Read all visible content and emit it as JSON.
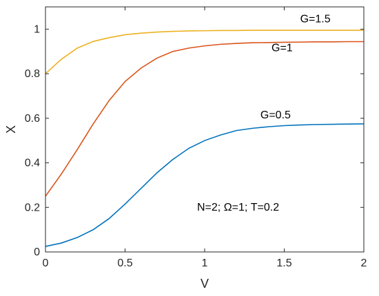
{
  "chart_data": {
    "type": "line",
    "title": "",
    "xlabel": "V",
    "ylabel": "X",
    "xlim": [
      0,
      2
    ],
    "ylim": [
      0,
      1.1
    ],
    "xticks": [
      0,
      0.5,
      1,
      1.5,
      2
    ],
    "xtick_labels": [
      "0",
      "0.5",
      "1",
      "1.5",
      "2"
    ],
    "yticks": [
      0,
      0.2,
      0.4,
      0.6,
      0.8,
      1
    ],
    "ytick_labels": [
      "0",
      "0.2",
      "0.4",
      "0.6",
      "0.8",
      "1"
    ],
    "grid": false,
    "legend": "none",
    "annotation": "N=2; Ω=1; T=0.2",
    "x": [
      0,
      0.1,
      0.2,
      0.3,
      0.4,
      0.5,
      0.6,
      0.7,
      0.8,
      0.9,
      1.0,
      1.1,
      1.2,
      1.3,
      1.4,
      1.5,
      1.6,
      1.7,
      1.8,
      1.9,
      2.0
    ],
    "series": [
      {
        "label": "G=0.5",
        "color": "#0072bd",
        "label_at": [
          1.35,
          0.6
        ],
        "values": [
          0.025,
          0.04,
          0.065,
          0.1,
          0.15,
          0.215,
          0.285,
          0.355,
          0.415,
          0.465,
          0.5,
          0.525,
          0.545,
          0.555,
          0.562,
          0.567,
          0.57,
          0.572,
          0.573,
          0.574,
          0.575
        ]
      },
      {
        "label": "G=1",
        "color": "#d95319",
        "label_at": [
          1.42,
          0.9
        ],
        "values": [
          0.25,
          0.35,
          0.46,
          0.575,
          0.68,
          0.765,
          0.825,
          0.87,
          0.9,
          0.915,
          0.925,
          0.932,
          0.936,
          0.939,
          0.94,
          0.941,
          0.942,
          0.943,
          0.943,
          0.944,
          0.944
        ]
      },
      {
        "label": "G=1.5",
        "color": "#edb120",
        "label_at": [
          1.6,
          1.03
        ],
        "values": [
          0.8,
          0.865,
          0.915,
          0.945,
          0.962,
          0.975,
          0.982,
          0.987,
          0.99,
          0.992,
          0.993,
          0.994,
          0.994,
          0.995,
          0.995,
          0.995,
          0.995,
          0.995,
          0.995,
          0.995,
          0.995
        ]
      }
    ]
  }
}
